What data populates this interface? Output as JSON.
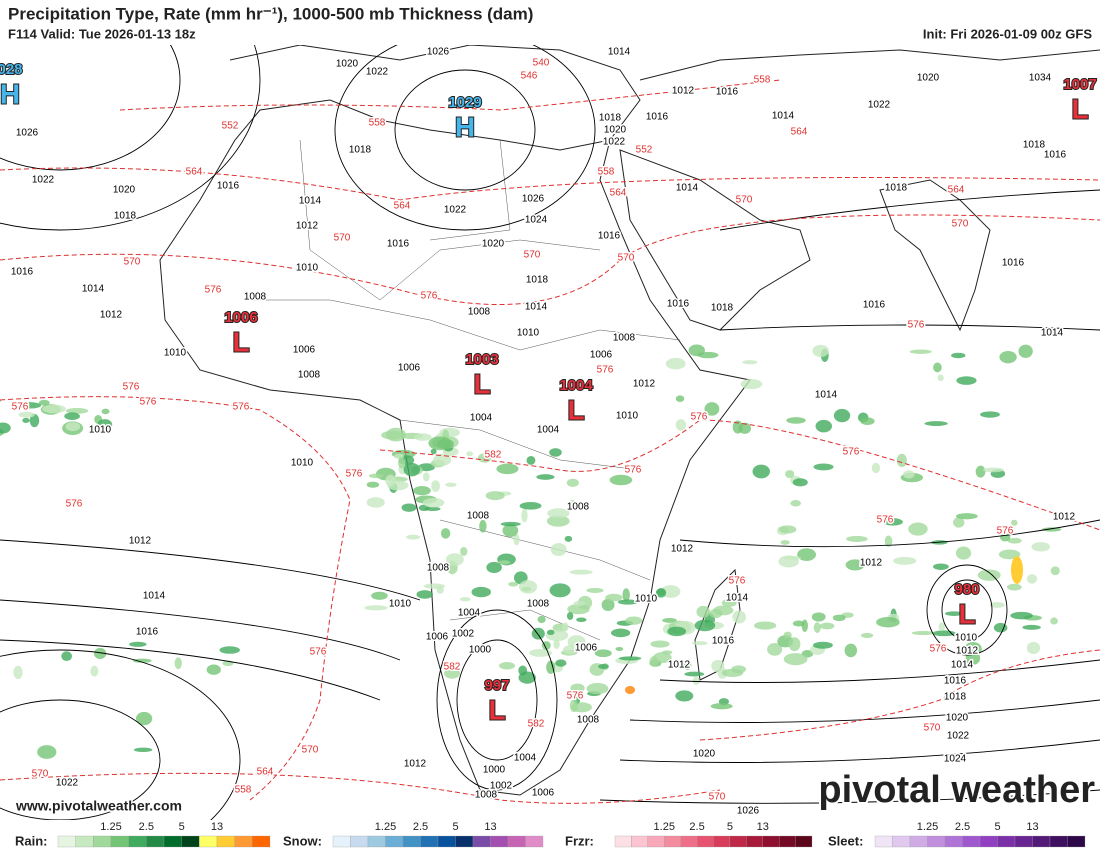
{
  "header": {
    "title": "Precipitation Type, Rate (mm hr⁻¹), 1000-500 mb Thickness (dam)",
    "valid": "F114 Valid: Tue 2026-01-13 18z",
    "init": "Init: Fri 2026-01-09 00z GFS"
  },
  "pressure_centers": [
    {
      "type": "H",
      "value": "028"
    },
    {
      "type": "H",
      "value": "1029"
    },
    {
      "type": "L",
      "value": "1006"
    },
    {
      "type": "L",
      "value": "1003"
    },
    {
      "type": "L",
      "value": "1004"
    },
    {
      "type": "L",
      "value": "997"
    },
    {
      "type": "L",
      "value": "980"
    },
    {
      "type": "L",
      "value": "1007"
    }
  ],
  "isobar_labels": [
    "1026",
    "1020",
    "1022",
    "1026",
    "1022",
    "1020",
    "1018",
    "1016",
    "1018",
    "1014",
    "1012",
    "1022",
    "1020",
    "1016",
    "1026",
    "1024",
    "1018",
    "1014",
    "1010",
    "1008",
    "1016",
    "1014",
    "1018",
    "1016",
    "1014",
    "1016",
    "1018",
    "1016",
    "1012",
    "1010",
    "1014",
    "1016",
    "1014",
    "1012",
    "1010",
    "1008",
    "1010",
    "1006",
    "1008",
    "1006",
    "1004",
    "1004",
    "1006",
    "1008",
    "1010",
    "1010",
    "1012",
    "1014",
    "1016",
    "1008",
    "1008",
    "1008",
    "1010",
    "1004",
    "1006",
    "1002",
    "1008",
    "1010",
    "1012",
    "1012",
    "1006",
    "1000",
    "1012",
    "1008",
    "1004",
    "1000",
    "1002",
    "1008",
    "1006",
    "1012",
    "1022",
    "1020",
    "1026",
    "1024",
    "1022",
    "1020",
    "1018",
    "1016",
    "1014",
    "1012",
    "1010",
    "1012",
    "1014",
    "1016",
    "1012",
    "1016",
    "1018",
    "1020",
    "1022",
    "1014",
    "1016",
    "1014",
    "1034",
    "1020",
    "1022",
    "1016",
    "1018"
  ],
  "thickness_labels": [
    "546",
    "540",
    "552",
    "558",
    "564",
    "570",
    "564",
    "558",
    "564",
    "552",
    "558",
    "564",
    "570",
    "564",
    "570",
    "570",
    "576",
    "576",
    "570",
    "570",
    "576",
    "576",
    "576",
    "576",
    "576",
    "576",
    "576",
    "576",
    "576",
    "582",
    "576",
    "576",
    "576",
    "576",
    "576",
    "576",
    "582",
    "576",
    "582",
    "576",
    "570",
    "570",
    "564",
    "558",
    "570",
    "570"
  ],
  "watermark": "www.pivotalweather.com",
  "logo": "pivotal weather",
  "legend": [
    {
      "name": "Rain:",
      "ticks": [
        "1.25",
        "2.5",
        "5",
        "13"
      ],
      "colors": [
        "#e6f5e1",
        "#c7e9c0",
        "#a1d99b",
        "#74c476",
        "#41ab5d",
        "#238b45",
        "#006d2c",
        "#00441b",
        "#ffff66",
        "#ffcc33",
        "#ff9933",
        "#ff6600"
      ]
    },
    {
      "name": "Snow:",
      "ticks": [
        "1.25",
        "2.5",
        "5",
        "13"
      ],
      "colors": [
        "#e6f2fb",
        "#c6dbef",
        "#9ecae1",
        "#6baed6",
        "#4292c6",
        "#2171b5",
        "#08519c",
        "#08306b",
        "#7a4ca8",
        "#a44fb0",
        "#c864b4",
        "#e08cc8"
      ]
    },
    {
      "name": "Frzr:",
      "ticks": [
        "1.25",
        "2.5",
        "5",
        "13"
      ],
      "colors": [
        "#fde0e6",
        "#fbc4d0",
        "#f8a8b8",
        "#f48ca0",
        "#ef6f88",
        "#e85370",
        "#d93b5b",
        "#c02848",
        "#a81a3a",
        "#8e102e",
        "#740a24",
        "#5c061c"
      ]
    },
    {
      "name": "Sleet:",
      "ticks": [
        "1.25",
        "2.5",
        "5",
        "13"
      ],
      "colors": [
        "#f0e4f7",
        "#e0c8ef",
        "#d0ace7",
        "#c090df",
        "#b074d7",
        "#a058cf",
        "#9040c0",
        "#7c30a8",
        "#682490",
        "#541a78",
        "#401060",
        "#2c0848"
      ]
    }
  ]
}
